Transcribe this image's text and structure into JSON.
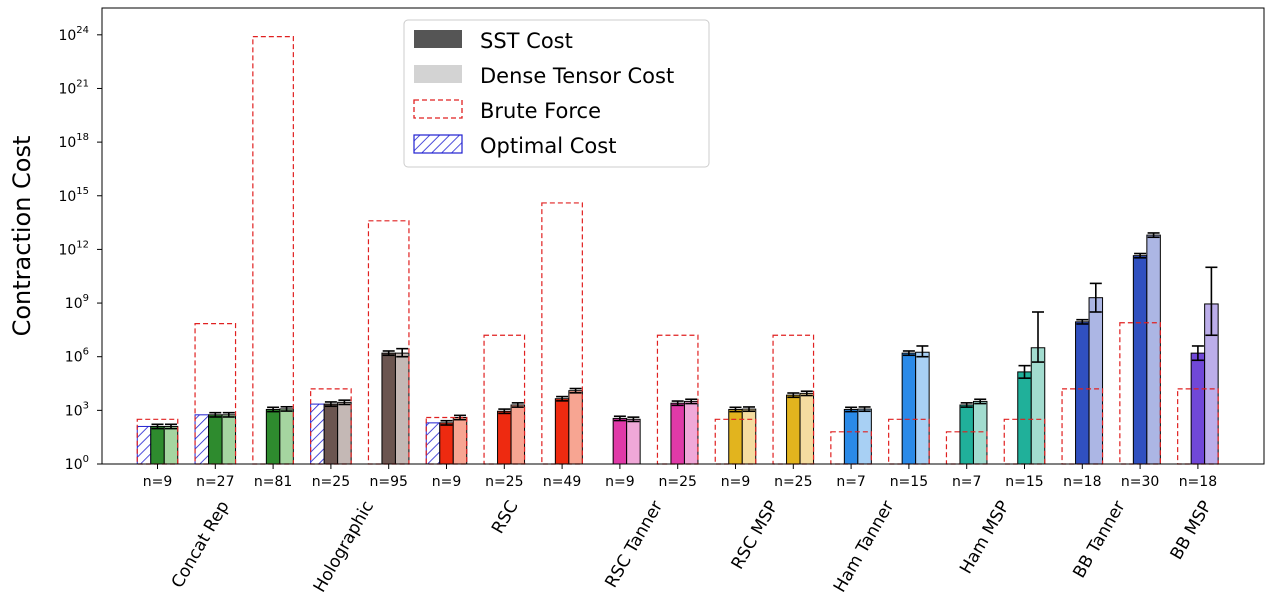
{
  "chart_data": {
    "type": "bar",
    "ylabel": "Contraction Cost",
    "yscale": "log",
    "ylim_exponent": [
      0,
      25.5
    ],
    "ytick_exponents": [
      0,
      3,
      6,
      9,
      12,
      15,
      18,
      21,
      24
    ],
    "ytick_base": "10",
    "legend": {
      "placement": "top-center",
      "entries": [
        "SST Cost",
        "Dense Tensor Cost",
        "Brute Force",
        "Optimal Cost"
      ]
    },
    "colors": {
      "concat": "#2e8b2e",
      "concat_light": "#a5d5a0",
      "holo": "#6b5550",
      "holo_light": "#c4b8b5",
      "rsc": "#ee2a10",
      "rsc_light": "#f7a592",
      "rsct": "#e03aa8",
      "rsct_light": "#f0a8d8",
      "rscmsp": "#e2b41e",
      "rscmsp_light": "#f4dca0",
      "hamt": "#2a8ae8",
      "hamt_light": "#a8d0f4",
      "hammsp": "#20b09a",
      "hammsp_light": "#a2dccf",
      "bbt": "#3050c0",
      "bbt_light": "#acb6e4",
      "bbmsp": "#7048d8",
      "bbmsp_light": "#bcaeea",
      "brute": "#e02020",
      "optimal": "#2020d0"
    },
    "groups": [
      {
        "label": "Concat Rep",
        "color": "concat",
        "items": [
          {
            "n": "n=9",
            "sst": 2.1,
            "dense": 2.1,
            "brute": 2.5,
            "optimal": 2.1
          },
          {
            "n": "n=27",
            "sst": 2.75,
            "dense": 2.75,
            "brute": 7.85,
            "optimal": 2.75
          },
          {
            "n": "n=81",
            "sst": 3.05,
            "dense": 3.08,
            "brute": 23.9
          }
        ]
      },
      {
        "label": "Holographic",
        "color": "holo",
        "items": [
          {
            "n": "n=25",
            "sst": 3.35,
            "dense": 3.45,
            "brute": 4.2,
            "optimal": 3.35
          },
          {
            "n": "n=95",
            "sst": 6.2,
            "dense": 6.2,
            "dense_err": [
              6.0,
              6.45
            ],
            "brute": 13.6
          }
        ]
      },
      {
        "label": "RSC",
        "color": "rsc",
        "items": [
          {
            "n": "n=9",
            "sst": 2.3,
            "dense": 2.6,
            "brute": 2.6,
            "optimal": 2.3
          },
          {
            "n": "n=25",
            "sst": 2.95,
            "dense": 3.3,
            "brute": 7.2
          },
          {
            "n": "n=49",
            "sst": 3.65,
            "dense": 4.1,
            "brute": 14.6
          }
        ]
      },
      {
        "label": "RSC Tanner",
        "color": "rsct",
        "items": [
          {
            "n": "n=9",
            "sst": 2.55,
            "dense": 2.5
          },
          {
            "n": "n=25",
            "sst": 3.4,
            "dense": 3.5,
            "brute": 7.2
          }
        ]
      },
      {
        "label": "RSC MSP",
        "color": "rscmsp",
        "items": [
          {
            "n": "n=9",
            "sst": 3.05,
            "dense": 3.07,
            "brute": 2.5
          },
          {
            "n": "n=25",
            "sst": 3.85,
            "dense": 3.95,
            "brute": 7.2
          }
        ]
      },
      {
        "label": "Ham Tanner",
        "color": "hamt",
        "items": [
          {
            "n": "n=7",
            "sst": 3.05,
            "dense": 3.07,
            "brute": 1.8
          },
          {
            "n": "n=15",
            "sst": 6.2,
            "dense": 6.25,
            "dense_err": [
              6.0,
              6.6
            ],
            "brute": 2.5
          }
        ]
      },
      {
        "label": "Ham MSP",
        "color": "hammsp",
        "items": [
          {
            "n": "n=7",
            "sst": 3.3,
            "dense": 3.5,
            "brute": 1.8
          },
          {
            "n": "n=15",
            "sst": 5.15,
            "dense": 6.5,
            "sst_err": [
              4.8,
              5.5
            ],
            "dense_err": [
              5.7,
              8.5
            ],
            "brute": 2.5
          }
        ]
      },
      {
        "label": "BB Tanner",
        "color": "bbt",
        "items": [
          {
            "n": "n=18",
            "sst": 7.95,
            "dense": 9.3,
            "dense_err": [
              8.5,
              10.1
            ],
            "brute": 4.2
          },
          {
            "n": "n=30",
            "sst": 11.65,
            "dense": 12.8,
            "brute": 7.9
          }
        ]
      },
      {
        "label": "BB MSP",
        "color": "bbmsp",
        "items": [
          {
            "n": "n=18",
            "sst": 6.2,
            "dense": 8.95,
            "sst_err": [
              5.8,
              6.6
            ],
            "dense_err": [
              7.2,
              11.0
            ],
            "brute": 4.2
          }
        ]
      }
    ]
  }
}
